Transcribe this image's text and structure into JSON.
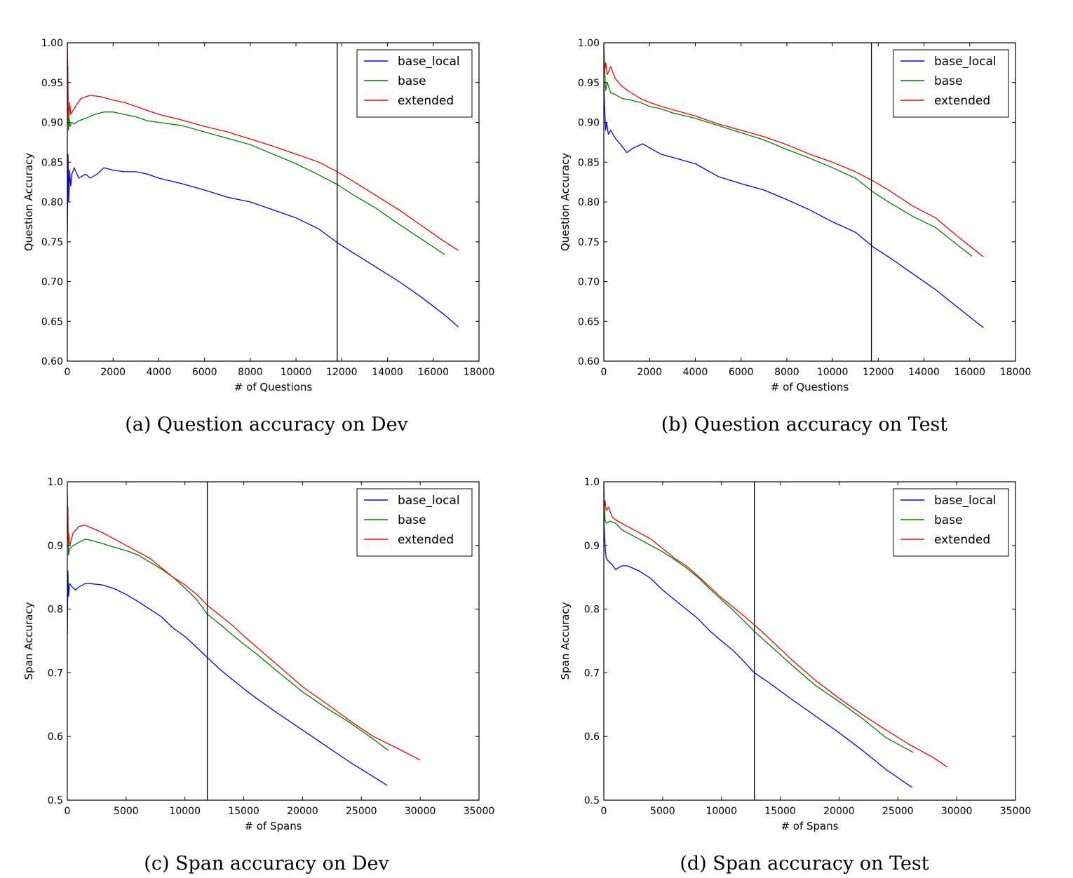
{
  "chart_data": [
    {
      "type": "line",
      "caption": "(a) Question accuracy on Dev",
      "xlabel": "# of Questions",
      "ylabel": "Question Accuracy",
      "xlim": [
        0,
        18000
      ],
      "ylim": [
        0.6,
        1.0
      ],
      "xticks": [
        0,
        2000,
        4000,
        6000,
        8000,
        10000,
        12000,
        14000,
        16000,
        18000
      ],
      "xtick_labels": [
        "0",
        "2000",
        "4000",
        "6000",
        "8000",
        "10000",
        "12000",
        "14000",
        "16000",
        "18000"
      ],
      "yticks": [
        0.6,
        0.65,
        0.7,
        0.75,
        0.8,
        0.85,
        0.9,
        0.95,
        1.0
      ],
      "ytick_labels": [
        "0.60",
        "0.65",
        "0.70",
        "0.75",
        "0.80",
        "0.85",
        "0.90",
        "0.95",
        "1.00"
      ],
      "vline": 11800,
      "legend_position": "top-right",
      "series": [
        {
          "name": "base_local",
          "color": "#0000ff",
          "x": [
            0,
            30,
            60,
            100,
            150,
            200,
            300,
            500,
            800,
            1000,
            1300,
            1600,
            2000,
            2500,
            3000,
            3500,
            4000,
            5000,
            6000,
            7000,
            8000,
            9000,
            10000,
            11000,
            11800,
            12500,
            13500,
            14500,
            15500,
            16500,
            17100
          ],
          "y": [
            0.76,
            0.86,
            0.8,
            0.84,
            0.82,
            0.835,
            0.843,
            0.83,
            0.835,
            0.83,
            0.835,
            0.843,
            0.84,
            0.838,
            0.838,
            0.835,
            0.83,
            0.823,
            0.815,
            0.806,
            0.8,
            0.79,
            0.78,
            0.766,
            0.749,
            0.736,
            0.718,
            0.7,
            0.68,
            0.658,
            0.643
          ]
        },
        {
          "name": "base",
          "color": "#008000",
          "x": [
            0,
            20,
            50,
            80,
            120,
            200,
            300,
            500,
            800,
            1200,
            1600,
            2000,
            2500,
            3000,
            3500,
            4000,
            5000,
            6000,
            7000,
            8000,
            9000,
            10000,
            11000,
            11800,
            12500,
            13500,
            14500,
            15500,
            16500
          ],
          "y": [
            0.95,
            0.97,
            0.89,
            0.905,
            0.895,
            0.9,
            0.898,
            0.902,
            0.905,
            0.91,
            0.913,
            0.913,
            0.91,
            0.907,
            0.902,
            0.9,
            0.896,
            0.888,
            0.88,
            0.872,
            0.86,
            0.848,
            0.834,
            0.822,
            0.809,
            0.792,
            0.772,
            0.753,
            0.734
          ]
        },
        {
          "name": "extended",
          "color": "#ff0000",
          "x": [
            0,
            30,
            60,
            100,
            150,
            250,
            400,
            600,
            1000,
            1500,
            2000,
            2500,
            3000,
            3500,
            4000,
            5000,
            6000,
            7000,
            8000,
            9000,
            10000,
            11000,
            11800,
            12500,
            13500,
            14500,
            15500,
            16500,
            17100
          ],
          "y": [
            1.0,
            0.925,
            0.905,
            0.925,
            0.91,
            0.915,
            0.922,
            0.93,
            0.934,
            0.932,
            0.928,
            0.925,
            0.92,
            0.915,
            0.91,
            0.903,
            0.895,
            0.888,
            0.879,
            0.87,
            0.86,
            0.85,
            0.838,
            0.826,
            0.808,
            0.79,
            0.77,
            0.75,
            0.739
          ]
        }
      ]
    },
    {
      "type": "line",
      "caption": "(b) Question accuracy on Test",
      "xlabel": "# of Questions",
      "ylabel": "Question Accuracy",
      "xlim": [
        0,
        18000
      ],
      "ylim": [
        0.6,
        1.0
      ],
      "xticks": [
        0,
        2000,
        4000,
        6000,
        8000,
        10000,
        12000,
        14000,
        16000,
        18000
      ],
      "xtick_labels": [
        "0",
        "2000",
        "4000",
        "6000",
        "8000",
        "10000",
        "12000",
        "14000",
        "16000",
        "18000"
      ],
      "yticks": [
        0.6,
        0.65,
        0.7,
        0.75,
        0.8,
        0.85,
        0.9,
        0.95,
        1.0
      ],
      "ytick_labels": [
        "0.60",
        "0.65",
        "0.70",
        "0.75",
        "0.80",
        "0.85",
        "0.90",
        "0.95",
        "1.00"
      ],
      "vline": 11700,
      "legend_position": "top-right",
      "series": [
        {
          "name": "base_local",
          "color": "#0000ff",
          "x": [
            0,
            30,
            80,
            120,
            200,
            300,
            500,
            800,
            1000,
            1300,
            1700,
            2000,
            2500,
            3000,
            4000,
            5000,
            6000,
            7000,
            8000,
            9000,
            10000,
            11000,
            11800,
            12500,
            13500,
            14500,
            15500,
            16600
          ],
          "y": [
            0.95,
            0.92,
            0.89,
            0.9,
            0.885,
            0.89,
            0.88,
            0.87,
            0.862,
            0.868,
            0.873,
            0.868,
            0.86,
            0.856,
            0.848,
            0.832,
            0.823,
            0.815,
            0.803,
            0.79,
            0.775,
            0.762,
            0.743,
            0.73,
            0.71,
            0.69,
            0.667,
            0.642
          ]
        },
        {
          "name": "base",
          "color": "#008000",
          "x": [
            0,
            30,
            80,
            150,
            300,
            500,
            800,
            1200,
            1600,
            2000,
            2500,
            3000,
            4000,
            5000,
            6000,
            7000,
            8000,
            9000,
            10000,
            11000,
            11800,
            12500,
            13500,
            14500,
            15500,
            16100
          ],
          "y": [
            1.0,
            0.97,
            0.94,
            0.95,
            0.937,
            0.935,
            0.93,
            0.928,
            0.925,
            0.92,
            0.917,
            0.912,
            0.905,
            0.896,
            0.887,
            0.878,
            0.866,
            0.855,
            0.843,
            0.83,
            0.812,
            0.799,
            0.782,
            0.768,
            0.745,
            0.732
          ]
        },
        {
          "name": "extended",
          "color": "#ff0000",
          "x": [
            0,
            30,
            80,
            150,
            300,
            500,
            800,
            1200,
            1600,
            2000,
            2500,
            3000,
            4000,
            5000,
            6000,
            7000,
            8000,
            9000,
            10000,
            11000,
            11800,
            12500,
            13500,
            14500,
            15500,
            16600
          ],
          "y": [
            0.98,
            0.965,
            0.975,
            0.96,
            0.97,
            0.955,
            0.945,
            0.937,
            0.93,
            0.925,
            0.92,
            0.916,
            0.908,
            0.898,
            0.89,
            0.882,
            0.872,
            0.86,
            0.85,
            0.838,
            0.826,
            0.814,
            0.795,
            0.78,
            0.756,
            0.731
          ]
        }
      ]
    },
    {
      "type": "line",
      "caption": "(c) Span accuracy on Dev",
      "xlabel": "# of Spans",
      "ylabel": "Span Accuracy",
      "xlim": [
        0,
        35000
      ],
      "ylim": [
        0.5,
        1.0
      ],
      "xticks": [
        0,
        5000,
        10000,
        15000,
        20000,
        25000,
        30000,
        35000
      ],
      "xtick_labels": [
        "0",
        "5000",
        "10000",
        "15000",
        "20000",
        "25000",
        "30000",
        "35000"
      ],
      "yticks": [
        0.5,
        0.6,
        0.7,
        0.8,
        0.9,
        1.0
      ],
      "ytick_labels": [
        "0.5",
        "0.6",
        "0.7",
        "0.8",
        "0.9",
        "1.0"
      ],
      "vline": 11900,
      "legend_position": "top-right",
      "series": [
        {
          "name": "base_local",
          "color": "#0000ff",
          "x": [
            0,
            50,
            100,
            200,
            400,
            700,
            1000,
            1500,
            2000,
            3000,
            4000,
            5000,
            6000,
            7000,
            8000,
            9000,
            10000,
            11000,
            11900,
            13000,
            14000,
            15000,
            16000,
            18000,
            20000,
            22000,
            24000,
            26000,
            27200
          ],
          "y": [
            0.76,
            0.86,
            0.82,
            0.84,
            0.835,
            0.83,
            0.835,
            0.84,
            0.84,
            0.838,
            0.832,
            0.823,
            0.812,
            0.8,
            0.788,
            0.77,
            0.757,
            0.74,
            0.724,
            0.705,
            0.69,
            0.675,
            0.661,
            0.635,
            0.61,
            0.585,
            0.56,
            0.537,
            0.523
          ]
        },
        {
          "name": "base",
          "color": "#008000",
          "x": [
            0,
            50,
            100,
            200,
            500,
            1000,
            1500,
            2000,
            3000,
            4000,
            5000,
            6000,
            7000,
            8000,
            9000,
            10000,
            11000,
            11900,
            13000,
            14000,
            15000,
            16000,
            18000,
            20000,
            22000,
            24000,
            26000,
            27300
          ],
          "y": [
            0.95,
            0.96,
            0.885,
            0.895,
            0.9,
            0.905,
            0.91,
            0.908,
            0.903,
            0.897,
            0.892,
            0.885,
            0.874,
            0.863,
            0.85,
            0.833,
            0.815,
            0.792,
            0.776,
            0.76,
            0.745,
            0.731,
            0.7,
            0.67,
            0.645,
            0.622,
            0.596,
            0.578
          ]
        },
        {
          "name": "extended",
          "color": "#ff0000",
          "x": [
            0,
            50,
            100,
            200,
            500,
            1000,
            1500,
            2000,
            3000,
            4000,
            5000,
            6000,
            7000,
            8000,
            9000,
            10000,
            11000,
            11900,
            13000,
            14000,
            15000,
            16000,
            18000,
            20000,
            22000,
            24000,
            26000,
            28000,
            30000
          ],
          "y": [
            0.98,
            0.91,
            0.92,
            0.9,
            0.92,
            0.93,
            0.932,
            0.928,
            0.92,
            0.91,
            0.9,
            0.89,
            0.88,
            0.865,
            0.85,
            0.838,
            0.823,
            0.806,
            0.79,
            0.775,
            0.758,
            0.742,
            0.71,
            0.678,
            0.652,
            0.625,
            0.6,
            0.582,
            0.563
          ]
        }
      ]
    },
    {
      "type": "line",
      "caption": "(d) Span accuracy on Test",
      "xlabel": "# of Spans",
      "ylabel": "Span Accuracy",
      "xlim": [
        0,
        35000
      ],
      "ylim": [
        0.5,
        1.0
      ],
      "xticks": [
        0,
        5000,
        10000,
        15000,
        20000,
        25000,
        30000,
        35000
      ],
      "xtick_labels": [
        "0",
        "5000",
        "10000",
        "15000",
        "20000",
        "25000",
        "30000",
        "35000"
      ],
      "yticks": [
        0.5,
        0.6,
        0.7,
        0.8,
        0.9,
        1.0
      ],
      "ytick_labels": [
        "0.5",
        "0.6",
        "0.7",
        "0.8",
        "0.9",
        "1.0"
      ],
      "vline": 12800,
      "legend_position": "top-right",
      "series": [
        {
          "name": "base_local",
          "color": "#0000ff",
          "x": [
            0,
            50,
            100,
            200,
            400,
            700,
            1000,
            1500,
            2000,
            3000,
            4000,
            5000,
            6000,
            7000,
            8000,
            9000,
            10000,
            11000,
            12000,
            12800,
            14000,
            16000,
            18000,
            20000,
            22000,
            24000,
            26200
          ],
          "y": [
            0.95,
            0.92,
            0.9,
            0.88,
            0.875,
            0.87,
            0.862,
            0.868,
            0.868,
            0.86,
            0.848,
            0.83,
            0.815,
            0.8,
            0.785,
            0.766,
            0.75,
            0.735,
            0.716,
            0.7,
            0.685,
            0.658,
            0.632,
            0.606,
            0.578,
            0.548,
            0.52
          ]
        },
        {
          "name": "base",
          "color": "#008000",
          "x": [
            0,
            50,
            100,
            200,
            500,
            1000,
            1500,
            2000,
            3000,
            4000,
            5000,
            6000,
            7000,
            8000,
            9000,
            10000,
            11000,
            12000,
            12800,
            14000,
            16000,
            18000,
            20000,
            22000,
            24000,
            26300
          ],
          "y": [
            1.0,
            0.96,
            0.94,
            0.935,
            0.938,
            0.935,
            0.925,
            0.92,
            0.91,
            0.9,
            0.89,
            0.878,
            0.865,
            0.85,
            0.832,
            0.815,
            0.798,
            0.78,
            0.765,
            0.745,
            0.712,
            0.68,
            0.655,
            0.628,
            0.598,
            0.575
          ]
        },
        {
          "name": "extended",
          "color": "#ff0000",
          "x": [
            0,
            50,
            100,
            200,
            400,
            700,
            1000,
            1500,
            2000,
            3000,
            4000,
            5000,
            6000,
            7000,
            8000,
            9000,
            10000,
            11000,
            12000,
            12800,
            14000,
            16000,
            18000,
            20000,
            22000,
            24000,
            26000,
            28000,
            29200
          ],
          "y": [
            0.98,
            0.96,
            0.97,
            0.955,
            0.96,
            0.945,
            0.94,
            0.935,
            0.93,
            0.92,
            0.91,
            0.895,
            0.88,
            0.868,
            0.852,
            0.835,
            0.818,
            0.803,
            0.788,
            0.775,
            0.755,
            0.72,
            0.688,
            0.66,
            0.634,
            0.61,
            0.587,
            0.567,
            0.552
          ]
        }
      ]
    }
  ]
}
